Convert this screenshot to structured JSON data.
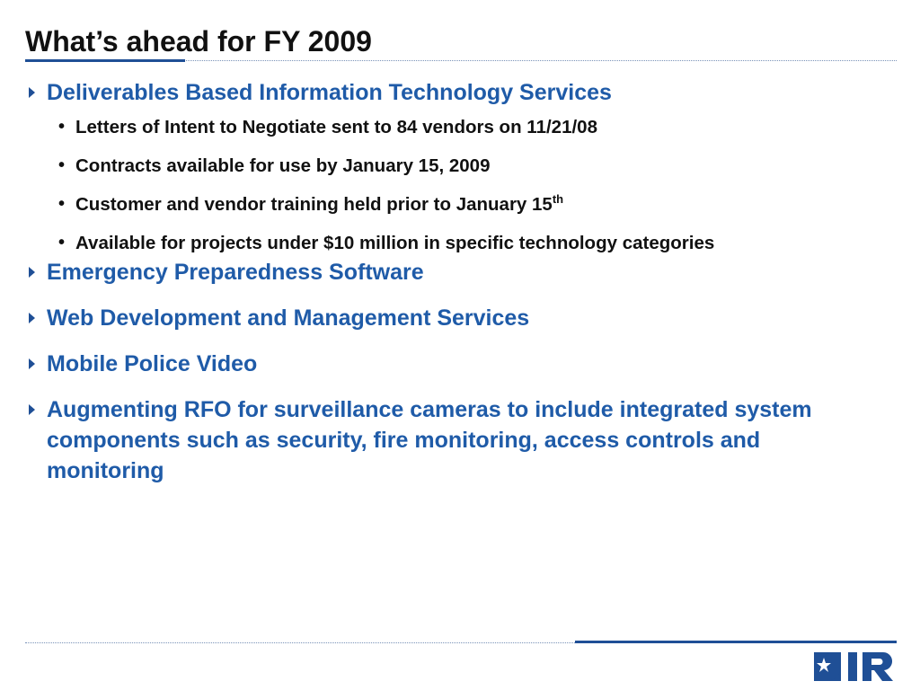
{
  "slide": {
    "title": "What’s ahead for FY 2009"
  },
  "bullets": [
    {
      "text": "Deliverables Based Information Technology Services",
      "sub": [
        {
          "text": "Letters of Intent to Negotiate sent to 84 vendors on 11/21/08"
        },
        {
          "text": "Contracts available for use by January 15, 2009"
        },
        {
          "text": "Customer and vendor training held prior to January 15",
          "sup": "th"
        },
        {
          "text": "Available for projects under $10 million in specific technology categories"
        }
      ]
    },
    {
      "text": "Emergency Preparedness Software"
    },
    {
      "text": "Web Development and Management Services"
    },
    {
      "text": "Mobile Police Video"
    },
    {
      "text": "Augmenting RFO for surveillance cameras to include integrated system components such as security, fire monitoring, access controls and monitoring"
    }
  ],
  "logo": {
    "text": "DIR",
    "icon": "texas-star-icon"
  },
  "colors": {
    "accent": "#1f5ba8",
    "rule": "#1f4f96"
  }
}
